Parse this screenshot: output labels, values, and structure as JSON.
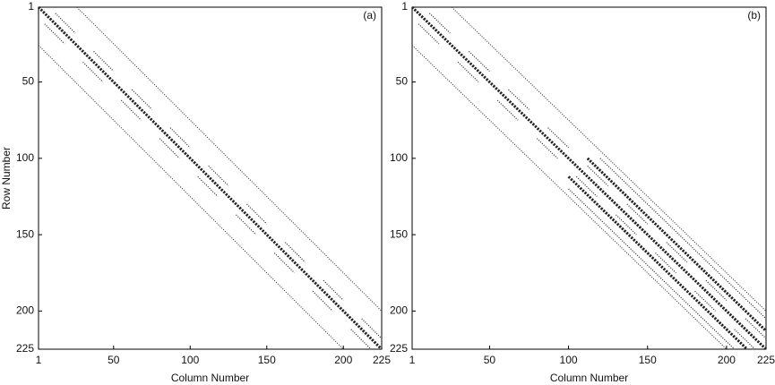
{
  "chart_data": [
    {
      "type": "line",
      "annotation": "(a)",
      "xlabel": "Column Number",
      "ylabel": "Row Number",
      "xlim": [
        1,
        225
      ],
      "ylim": [
        1,
        225
      ],
      "y_inverted": true,
      "xticks": [
        1,
        50,
        100,
        150,
        200,
        225
      ],
      "yticks": [
        1,
        50,
        100,
        150,
        200,
        225
      ],
      "grid": false,
      "color": "#222222",
      "series": [
        {
          "style": "dotted",
          "width": 1,
          "x": [
            26,
            225
          ],
          "values": [
            1,
            200
          ]
        },
        {
          "style": "dotted",
          "width": 1,
          "x": [
            1,
            200
          ],
          "values": [
            26,
            225
          ]
        },
        {
          "style": "dashed",
          "width": 3,
          "x": [
            1,
            225
          ],
          "values": [
            1,
            225
          ]
        },
        {
          "style": "dotted",
          "width": 1.2,
          "x": [
            12,
            25,
            null,
            37,
            50,
            null,
            62,
            75,
            null,
            87,
            100,
            null,
            112,
            125,
            null,
            137,
            150,
            null,
            162,
            175,
            null,
            187,
            200,
            null,
            212,
            225
          ],
          "values": [
            5,
            18,
            null,
            30,
            43,
            null,
            55,
            68,
            null,
            80,
            93,
            null,
            105,
            118,
            null,
            130,
            143,
            null,
            155,
            168,
            null,
            180,
            193,
            null,
            205,
            218
          ]
        },
        {
          "style": "dotted",
          "width": 1.2,
          "x": [
            5,
            18,
            null,
            30,
            43,
            null,
            55,
            68,
            null,
            80,
            93,
            null,
            105,
            118,
            null,
            130,
            143,
            null,
            155,
            168,
            null,
            180,
            193,
            null,
            205,
            218
          ],
          "values": [
            12,
            25,
            null,
            37,
            50,
            null,
            62,
            75,
            null,
            87,
            100,
            null,
            112,
            125,
            null,
            137,
            150,
            null,
            162,
            175,
            null,
            187,
            200,
            null,
            212,
            225
          ]
        }
      ]
    },
    {
      "type": "line",
      "annotation": "(b)",
      "xlabel": "Column Number",
      "xlim": [
        1,
        225
      ],
      "ylim": [
        1,
        225
      ],
      "y_inverted": true,
      "xticks": [
        1,
        50,
        100,
        150,
        200,
        225
      ],
      "yticks": [
        1,
        50,
        100,
        150,
        200,
        225
      ],
      "grid": false,
      "color": "#222222",
      "series": [
        {
          "style": "dotted",
          "width": 1,
          "x": [
            26,
            225
          ],
          "values": [
            1,
            200
          ]
        },
        {
          "style": "dotted",
          "width": 1,
          "x": [
            1,
            200
          ],
          "values": [
            26,
            225
          ]
        },
        {
          "style": "dashed",
          "width": 3,
          "x": [
            1,
            225
          ],
          "values": [
            1,
            225
          ]
        },
        {
          "style": "dotted",
          "width": 1.2,
          "x": [
            12,
            25,
            null,
            37,
            50,
            null,
            62,
            75,
            null,
            87,
            100,
            null,
            112,
            125,
            null,
            137,
            150,
            null,
            162,
            175,
            null,
            187,
            200,
            null,
            212,
            225
          ],
          "values": [
            5,
            18,
            null,
            30,
            43,
            null,
            55,
            68,
            null,
            80,
            93,
            null,
            105,
            118,
            null,
            130,
            143,
            null,
            155,
            168,
            null,
            180,
            193,
            null,
            205,
            218
          ]
        },
        {
          "style": "dotted",
          "width": 1.2,
          "x": [
            5,
            18,
            null,
            30,
            43,
            null,
            55,
            68,
            null,
            80,
            93,
            null,
            105,
            118,
            null,
            130,
            143,
            null,
            155,
            168,
            null,
            180,
            193,
            null,
            205,
            218
          ],
          "values": [
            12,
            25,
            null,
            37,
            50,
            null,
            62,
            75,
            null,
            87,
            100,
            null,
            112,
            125,
            null,
            137,
            150,
            null,
            162,
            175,
            null,
            187,
            200,
            null,
            212,
            225
          ]
        },
        {
          "style": "dashed",
          "width": 3,
          "x": [
            112,
            225
          ],
          "values": [
            100,
            213
          ]
        },
        {
          "style": "dashed",
          "width": 3,
          "x": [
            100,
            213
          ],
          "values": [
            112,
            225
          ]
        },
        {
          "style": "dotted",
          "width": 1.2,
          "x": [
            120,
            225
          ],
          "values": [
            100,
            205
          ]
        },
        {
          "style": "dotted",
          "width": 1.2,
          "x": [
            100,
            205
          ],
          "values": [
            120,
            225
          ]
        }
      ]
    }
  ]
}
